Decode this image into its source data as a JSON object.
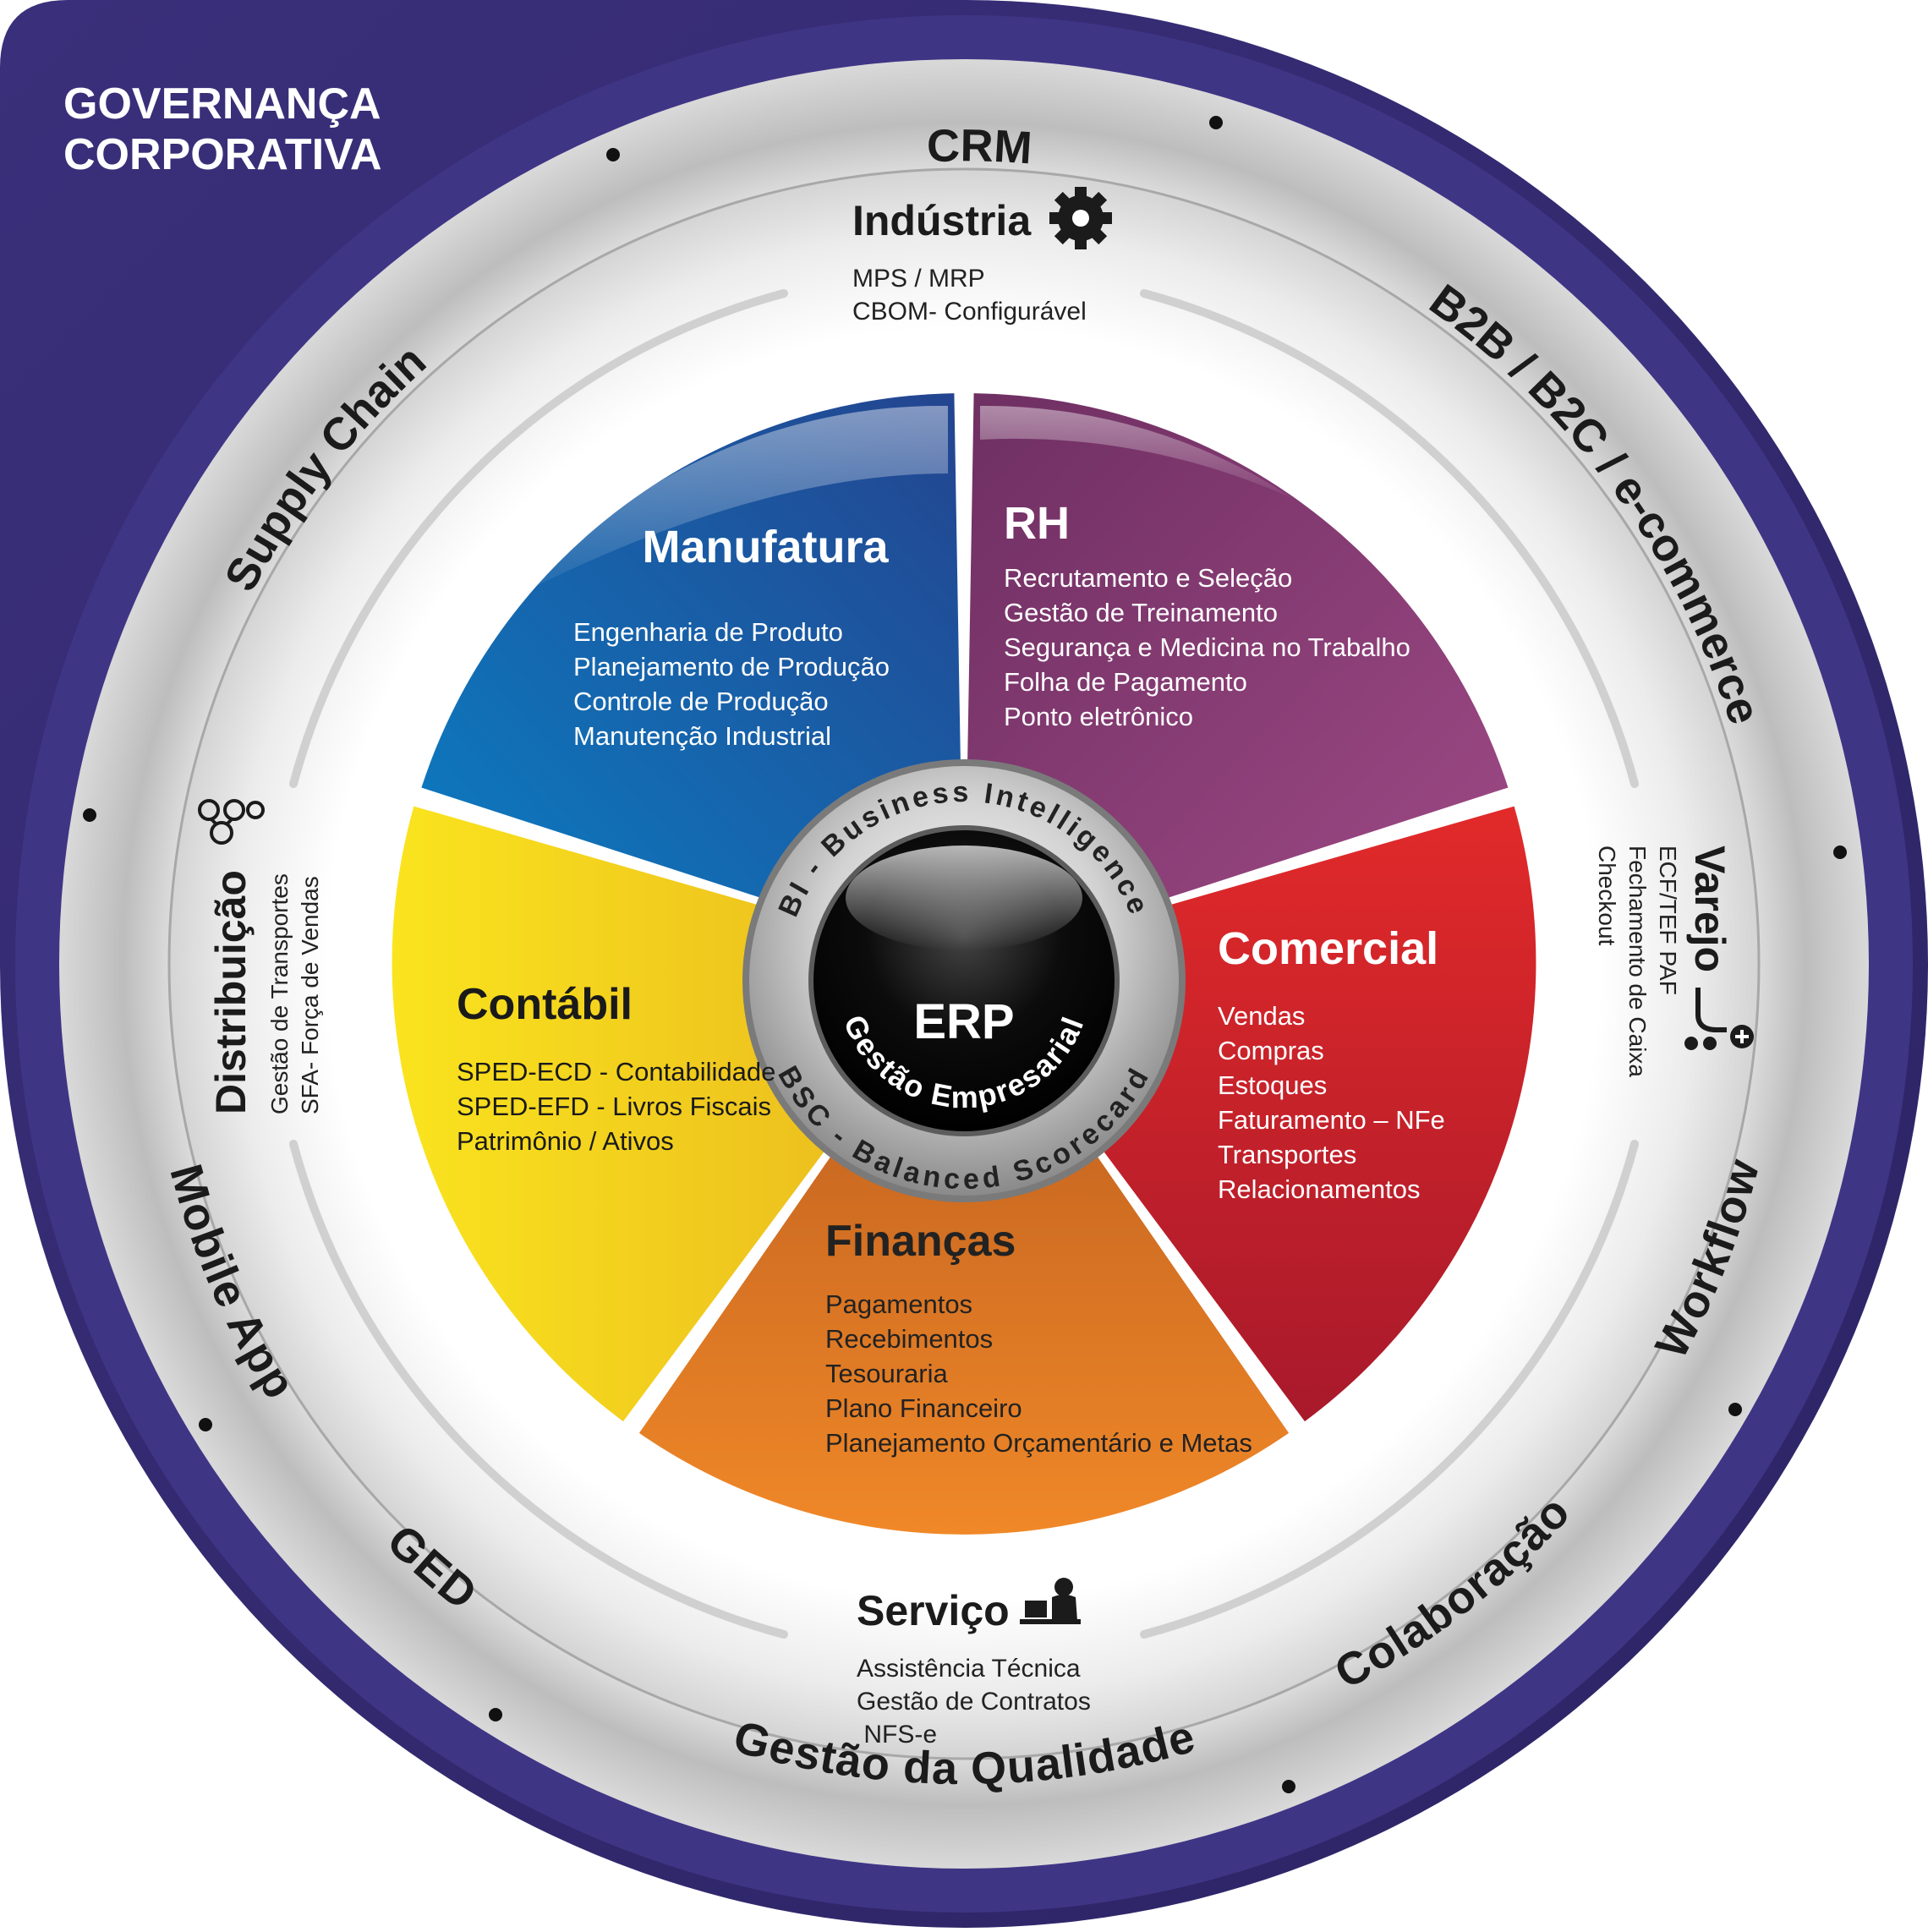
{
  "corner_title": [
    "GOVERNANÇA",
    "CORPORATIVA"
  ],
  "outer_ring": {
    "crm": "CRM",
    "b2b": "B2B / B2C / e-commerce",
    "workflow": "Workflow",
    "colaboracao": "Colaboração",
    "qualidade": "Gestão da Qualidade",
    "ged": "GED",
    "mobile": "Mobile App",
    "supply": "Supply Chain"
  },
  "verticals": {
    "industria": {
      "title": "Indústria",
      "icon": "gear-icon",
      "lines": [
        "MPS / MRP",
        "CBOM- Configurável"
      ]
    },
    "varejo": {
      "title": "Varejo",
      "icon": "shopping-cart-icon",
      "lines": [
        "ECF/TEF PAF",
        "Fechamento de Caixa",
        "Checkout"
      ]
    },
    "servico": {
      "title": "Serviço",
      "icon": "person-at-desk-icon",
      "lines": [
        "Assistência Técnica",
        "Gestão de Contratos",
        " NFS-e"
      ]
    },
    "distribuicao": {
      "title": "Distribuição",
      "icon": "network-nodes-icon",
      "lines": [
        "Gestão de Transportes",
        "SFA- Força de Vendas"
      ]
    }
  },
  "segments": {
    "manufatura": {
      "title": "Manufatura",
      "color": "#1f5fa8",
      "items": [
        "Engenharia de Produto",
        "Planejamento de Produção",
        "Controle de Produção",
        "Manutenção Industrial"
      ]
    },
    "rh": {
      "title": "RH",
      "color": "#8e3c78",
      "items": [
        "Recrutamento e Seleção",
        "Gestão de Treinamento",
        "Segurança e Medicina no Trabalho",
        "Folha de Pagamento",
        "Ponto eletrônico"
      ]
    },
    "comercial": {
      "title": "Comercial",
      "color": "#c9232b",
      "items": [
        "Vendas",
        "Compras",
        "Estoques",
        "Faturamento – NFe",
        "Transportes",
        "Relacionamentos"
      ]
    },
    "financas": {
      "title": "Finanças",
      "color": "#e07020",
      "items": [
        "Pagamentos",
        "Recebimentos",
        "Tesouraria",
        "Plano Financeiro",
        "Planejamento Orçamentário e Metas"
      ]
    },
    "contabil": {
      "title": "Contábil",
      "color": "#f2d020",
      "items": [
        "SPED-ECD - Contabilidade",
        "SPED-EFD - Livros Fiscais",
        "Patrimônio / Ativos"
      ]
    }
  },
  "center": {
    "title": "ERP",
    "subtitle": "Gestão Empresarial",
    "ring_top": "BI - Business Intelligence",
    "ring_bottom": "BSC - Balanced Scorecard"
  }
}
